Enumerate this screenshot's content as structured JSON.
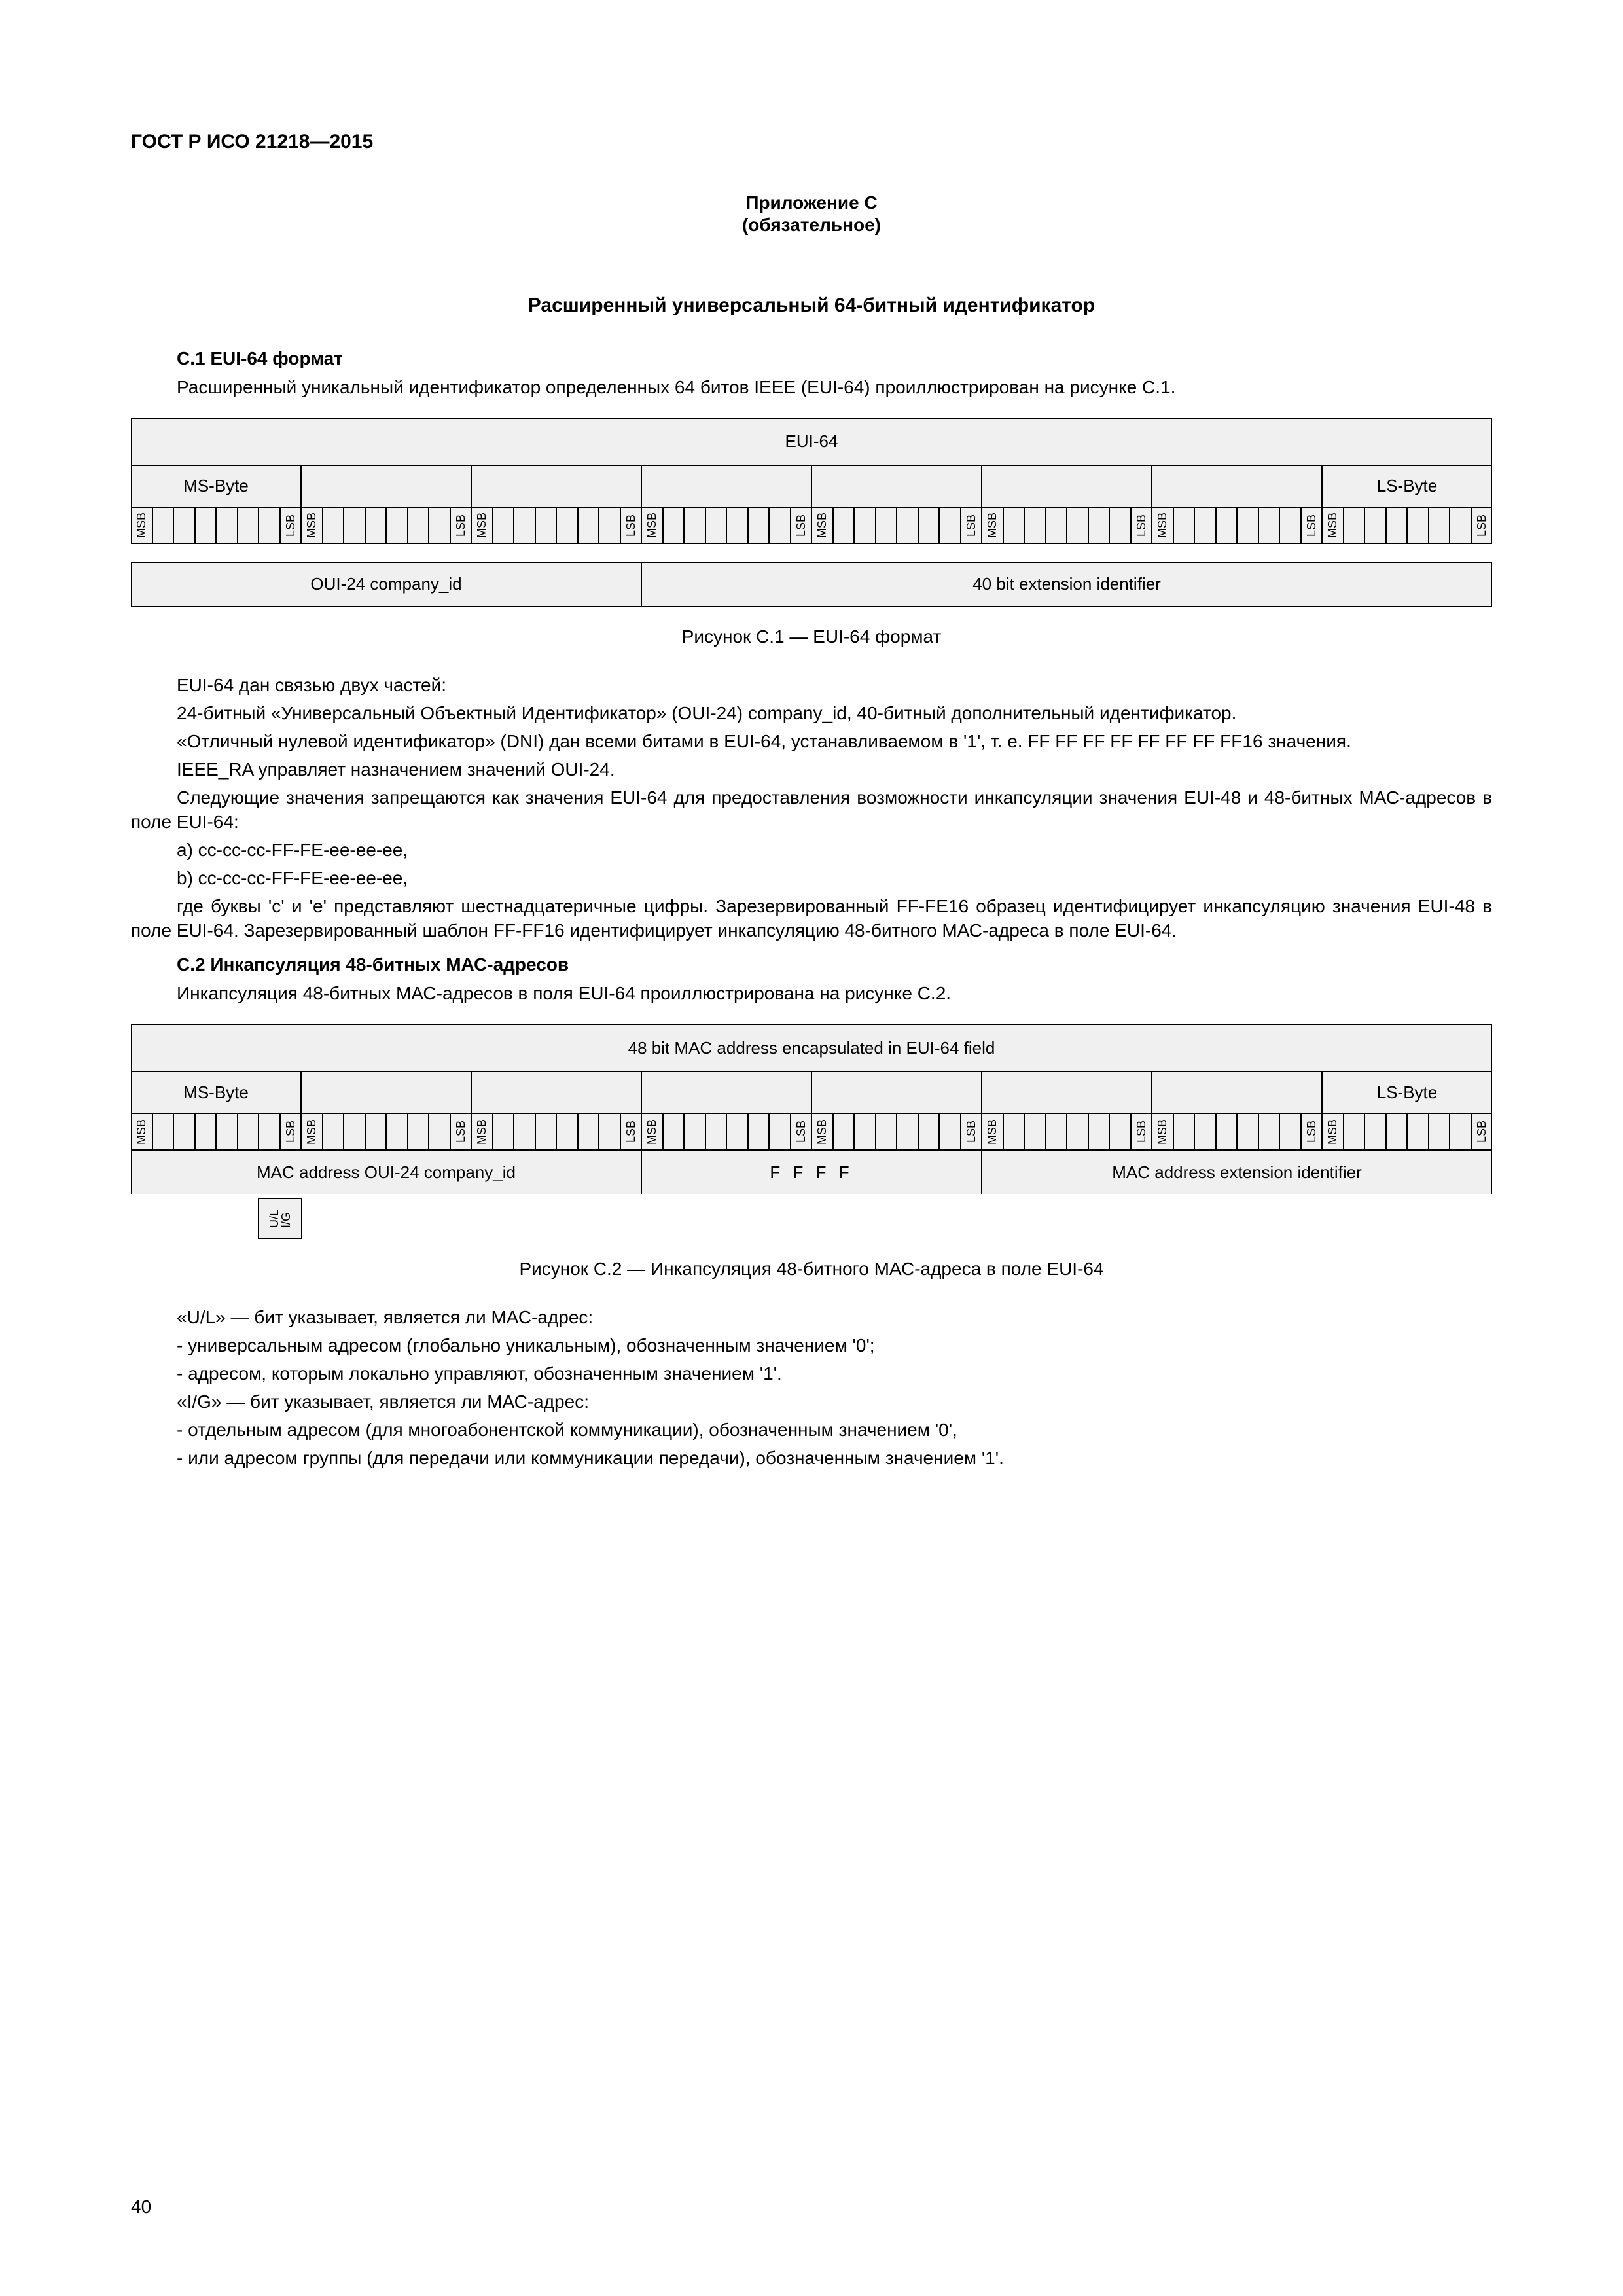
{
  "doc": {
    "standard_id": "ГОСТ Р ИСО 21218—2015",
    "appendix_label": "Приложение С",
    "appendix_note": "(обязательное)",
    "main_title": "Расширенный универсальный 64-битный идентификатор",
    "page_number": "40"
  },
  "sec_c1": {
    "title": "С.1 EUI-64 формат",
    "p1": "Расширенный уникальный идентификатор определенных 64 битов IEEE (EUI-64) проиллюстрирован на рисунке С.1.",
    "fig_caption": "Рисунок С.1 — EUI-64 формат",
    "p2": "EUI-64 дан связью двух частей:",
    "p3": "24-битный «Универсальный Объектный Идентификатор» (OUI-24) company_id, 40-битный дополнительный идентификатор.",
    "p4": "«Отличный нулевой идентификатор» (DNI) дан всеми битами в EUI-64, устанавливаемом в '1', т. е. FF FF FF FF FF FF FF FF16 значения.",
    "p5": "IEEE_RA управляет назначением значений OUI-24.",
    "p6": "Следующие значения запрещаются как значения EUI-64 для предоставления возможности инкапсуляции значения EUI-48 и 48-битных МАС-адресов в поле EUI-64:",
    "p7a": "a) cc-cc-cc-FF-FE-ee-ee-ee,",
    "p7b": "b) cc-cc-cc-FF-FE-ee-ee-ee,",
    "p8": "где буквы 'c' и 'e' представляют шестнадцатеричные цифры. Зарезервированный FF-FE16 образец идентифицирует инкапсуляцию значения EUI-48 в поле EUI-64. Зарезервированный шаблон FF-FF16 идентифицирует инкапсуляцию 48-битного МАС-адреса в поле EUI-64."
  },
  "sec_c2": {
    "title": "С.2 Инкапсуляция 48-битных МАС-адресов",
    "p1": "Инкапсуляция 48-битных МАС-адресов в поля EUI-64 проиллюстрирована на рисунке С.2.",
    "fig_caption": "Рисунок С.2 — Инкапсуляция 48-битного МАС-адреса в поле EUI-64",
    "p2": "«U/L» — бит указывает, является ли МАС-адрес:",
    "li1": "-   универсальным адресом (глобально уникальным), обозначенным значением '0';",
    "li2": "-   адресом, которым локально управляют, обозначенным значением '1'.",
    "p3": "«I/G» — бит указывает, является ли МАС-адрес:",
    "li3": "-   отдельным адресом (для многоабонентской коммуникации), обозначенным значением '0',",
    "li4": "-   или адресом группы (для передачи или коммуникации передачи), обозначенным значением '1'."
  },
  "fig_c1": {
    "top_label": "EUI-64",
    "ms_byte": "MS-Byte",
    "ls_byte": "LS-Byte",
    "bottom_left": "OUI-24 company_id",
    "bottom_right": "40 bit extension identifier",
    "msb": "MSB",
    "lsb": "LSB",
    "dims": {
      "total_width": 2080,
      "byte_width": 260,
      "bit_width": 32.5,
      "row1_h": 72,
      "row2_h": 64,
      "row3_h": 56,
      "gap": 28,
      "row4_h": 68
    },
    "colors": {
      "cell_bg": "#f0f0f0",
      "border": "#000000"
    }
  },
  "fig_c2": {
    "top_label": "48 bit MAC address encapsulated in EUI-64 field",
    "ms_byte": "MS-Byte",
    "ls_byte": "LS-Byte",
    "row4_a": "MAC address OUI-24 company_id",
    "row4_b": "F F F F",
    "row4_c": "MAC address extension identifier",
    "ul": "U/L",
    "ig": "I/G",
    "msb": "MSB",
    "lsb": "LSB",
    "dims": {
      "total_width": 2080,
      "byte_width": 260,
      "bit_width": 32.5,
      "row1_h": 72,
      "row2_h": 64,
      "row3_h": 56,
      "row4_h": 68
    },
    "colors": {
      "cell_bg": "#f0f0f0",
      "border": "#000000"
    }
  }
}
